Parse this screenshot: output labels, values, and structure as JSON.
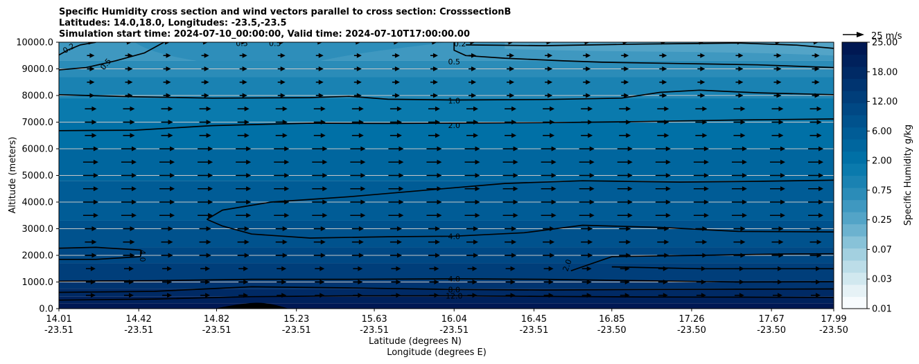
{
  "chart_data": {
    "type": "heatmap",
    "title_lines": [
      "Specific Humidity cross section and wind vectors parallel to cross section: CrosssectionB",
      "Latitudes: 14.0,18.0, Longitudes: -23.5,-23.5",
      "Simulation start time: 2024-07-10_00:00:00, Valid time: 2024-07-10T17:00:00.00"
    ],
    "ylabel": "Altitude (meters)",
    "xlabel_lat": "Latitude (degrees N)",
    "xlabel_lon": "Longitude (degrees E)",
    "ylim": [
      0,
      10000
    ],
    "y_ticks": [
      "0.0",
      "1000.0",
      "2000.0",
      "3000.0",
      "4000.0",
      "5000.0",
      "6000.0",
      "7000.0",
      "8000.0",
      "9000.0",
      "10000.0"
    ],
    "x_ticks": [
      {
        "lat": "14.01",
        "lon": "-23.51"
      },
      {
        "lat": "14.42",
        "lon": "-23.51"
      },
      {
        "lat": "14.82",
        "lon": "-23.51"
      },
      {
        "lat": "15.23",
        "lon": "-23.51"
      },
      {
        "lat": "15.63",
        "lon": "-23.51"
      },
      {
        "lat": "16.04",
        "lon": "-23.51"
      },
      {
        "lat": "16.45",
        "lon": "-23.51"
      },
      {
        "lat": "16.85",
        "lon": "-23.50"
      },
      {
        "lat": "17.26",
        "lon": "-23.50"
      },
      {
        "lat": "17.67",
        "lon": "-23.50"
      },
      {
        "lat": "17.99",
        "lon": "-23.50"
      }
    ],
    "colorbar": {
      "label": "Specific Humidity g/kg",
      "tick_labels": [
        "0.01",
        "0.03",
        "0.07",
        "0.25",
        "0.75",
        "2.00",
        "6.00",
        "12.00",
        "18.00",
        "25.00"
      ],
      "colors": [
        "#f7fbfd",
        "#e6f2f6",
        "#d1e8ef",
        "#bcdde8",
        "#a3d0e0",
        "#88c2d8",
        "#6cb2cf",
        "#53a4c7",
        "#3f98c0",
        "#2b8cb8",
        "#1a82b2",
        "#0a7aad",
        "#0070a6",
        "#00669e",
        "#005c96",
        "#00528d",
        "#004884",
        "#003e7a",
        "#003470",
        "#002a65",
        "#00215c",
        "#001853"
      ]
    },
    "wind_reference": {
      "label": "25 m/s",
      "speed": 25
    },
    "contour_levels": [
      0.2,
      0.5,
      1.0,
      2.0,
      4.0,
      8.0,
      12.0
    ],
    "contour_labels": [
      {
        "text": "0.2",
        "lat": 14.06,
        "alt": 9780,
        "angle": -30
      },
      {
        "text": "0.5",
        "lat": 14.25,
        "alt": 9180,
        "angle": -50
      },
      {
        "text": "0.5",
        "lat": 14.95,
        "alt": 9960,
        "angle": 0
      },
      {
        "text": "0.5",
        "lat": 15.12,
        "alt": 9960,
        "angle": 0
      },
      {
        "text": "0.2",
        "lat": 16.07,
        "alt": 9950,
        "angle": 0
      },
      {
        "text": "0.5",
        "lat": 16.04,
        "alt": 9270,
        "angle": 0
      },
      {
        "text": "1.0",
        "lat": 16.04,
        "alt": 7800,
        "angle": 0
      },
      {
        "text": "2.0",
        "lat": 16.04,
        "alt": 6880,
        "angle": 0
      },
      {
        "text": "4.0",
        "lat": 16.04,
        "alt": 2720,
        "angle": 0
      },
      {
        "text": "4.0",
        "lat": 14.44,
        "alt": 1980,
        "angle": 90
      },
      {
        "text": "2.0",
        "lat": 16.62,
        "alt": 1630,
        "angle": -70
      },
      {
        "text": "4.0",
        "lat": 16.04,
        "alt": 1120,
        "angle": 0
      },
      {
        "text": "8.0",
        "lat": 16.04,
        "alt": 720,
        "angle": 0
      },
      {
        "text": "12.0",
        "lat": 16.04,
        "alt": 480,
        "angle": 0
      }
    ],
    "terrain": {
      "peak_lat": 15.03,
      "peak_alt": 220,
      "half_width_deg": 0.1
    }
  }
}
